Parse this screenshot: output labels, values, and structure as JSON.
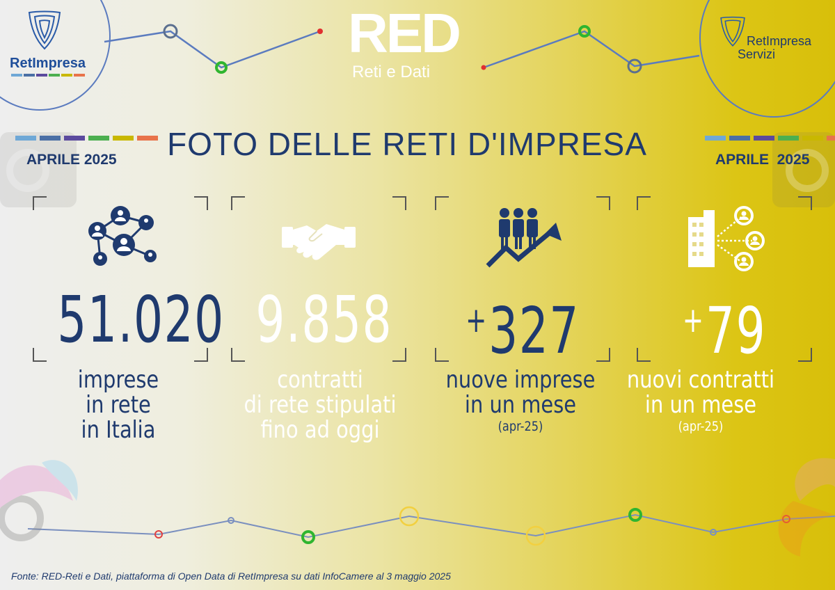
{
  "logos": {
    "left": "RetImpresa",
    "center_main": "RED",
    "center_sub": "Reti e Dati",
    "right_line1": "RetImpresa",
    "right_line2": "Servizi"
  },
  "header": {
    "date_left": "APRILE 2025",
    "date_right": "APRILE  2025",
    "title": "FOTO DELLE RETI D'IMPRESA"
  },
  "stats": [
    {
      "value": "51.020",
      "line1": "imprese",
      "line2": "in rete",
      "line3": "in Italia",
      "icon": "network-people-icon"
    },
    {
      "value": "9.858",
      "line1": "contratti",
      "line2": "di rete stipulati",
      "line3": "fino ad oggi",
      "icon": "handshake-icon"
    },
    {
      "prefix": "+",
      "value": "327",
      "line1": "nuove imprese",
      "line2": "in un mese",
      "note": "(apr-25)",
      "icon": "people-growth-icon"
    },
    {
      "prefix": "+",
      "value": "79",
      "line1": "nuovi contratti",
      "line2": "in un mese",
      "note": "(apr-25)",
      "icon": "building-network-icon"
    }
  ],
  "colors": {
    "navy": "#1f3a6e",
    "strip": [
      "#6fa8d6",
      "#4a6fa5",
      "#5b4a9e",
      "#4caf50",
      "#c9b800",
      "#e8734a"
    ]
  },
  "footer": "Fonte: RED-Reti e Dati, piattaforma di Open Data di RetImpresa su dati InfoCamere al 3 maggio 2025"
}
